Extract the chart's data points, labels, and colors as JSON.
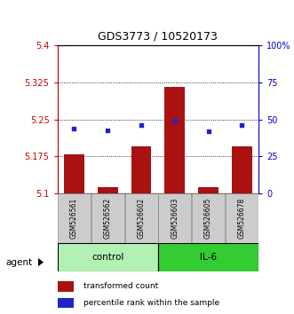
{
  "title": "GDS3773 / 10520173",
  "samples": [
    "GSM526561",
    "GSM526562",
    "GSM526602",
    "GSM526603",
    "GSM526605",
    "GSM526678"
  ],
  "bar_values": [
    5.178,
    5.112,
    5.195,
    5.315,
    5.112,
    5.195
  ],
  "percentile_values": [
    5.232,
    5.228,
    5.238,
    5.248,
    5.226,
    5.238
  ],
  "ylim": [
    5.1,
    5.4
  ],
  "yticks_left": [
    5.1,
    5.175,
    5.25,
    5.325,
    5.4
  ],
  "yticks_right_labels": [
    "0",
    "25",
    "50",
    "75",
    "100%"
  ],
  "yticks_right_vals": [
    5.1,
    5.175,
    5.25,
    5.325,
    5.4
  ],
  "gridlines": [
    5.175,
    5.25,
    5.325
  ],
  "bar_color": "#aa1111",
  "dot_color": "#2222cc",
  "left_axis_color": "#cc0000",
  "right_axis_color": "#0000cc",
  "groups": [
    {
      "label": "control",
      "samples": [
        0,
        1,
        2
      ],
      "color": "#b3f0b3"
    },
    {
      "label": "IL-6",
      "samples": [
        3,
        4,
        5
      ],
      "color": "#33cc33"
    }
  ],
  "agent_label": "agent",
  "legend_bar_label": "transformed count",
  "legend_dot_label": "percentile rank within the sample",
  "bar_width": 0.6,
  "sample_box_color": "#cccccc",
  "sample_box_border": "#888888"
}
